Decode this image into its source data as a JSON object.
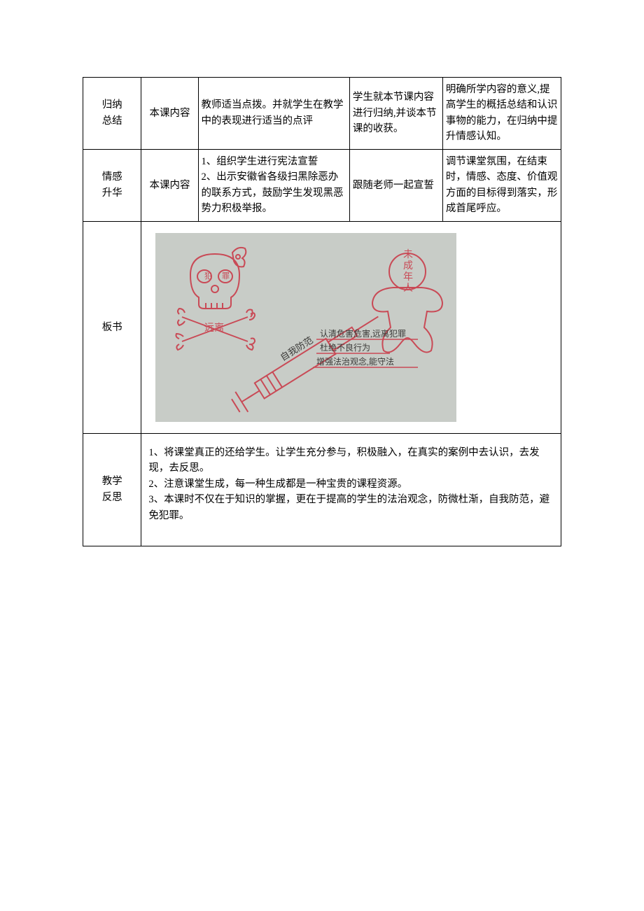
{
  "rows": [
    {
      "col1": "归纳\n总结",
      "col2": "本课内容",
      "col3": "教师适当点拨。并就学生在教学中的表现进行适当的点评",
      "col4": "学生就本节课内容进行归纳,并谈本节课的收获。",
      "col5": "明确所学内容的意义,提高学生的概括总结和认识事物的能力，在归纳中提升情感认知。"
    },
    {
      "col1": "情感\n升华",
      "col2": "本课内容",
      "col3": "1、组织学生进行宪法宣誓\n2、出示安徽省各级扫黑除恶办的联系方式，鼓励学生发现黑恶势力积极举报。",
      "col4": "跟随老师一起宣誓",
      "col5": "调节课堂氛围，在结束时，情感、态度、价值观方面的目标得到落实，形成首尾呼应。"
    }
  ],
  "boardwork": {
    "label": "板书",
    "drawing": {
      "background": "#c8ccc7",
      "ink_red": "#c94a56",
      "ink_dark": "#3b3a38",
      "skull_label_top": "犯罪",
      "skull_label_bottom": "远离",
      "person_label": "未\n成\n年\n人",
      "syringe_label": "自我防范",
      "lines": [
        "认清危害危害,远离犯罪",
        "杜绝不良行为",
        "增强法治观念,能守法"
      ]
    }
  },
  "reflection": {
    "label": "教学\n反思",
    "text": "1、将课堂真正的还给学生。让学生充分参与，积极融入，在真实的案例中去认识，去发现，去反思。\n2、注意课堂生成，每一种生成都是一种宝贵的课程资源。\n3、本课时不仅在于知识的掌握，更在于提高的学生的法治观念，防微杜渐，自我防范，避免犯罪。"
  }
}
